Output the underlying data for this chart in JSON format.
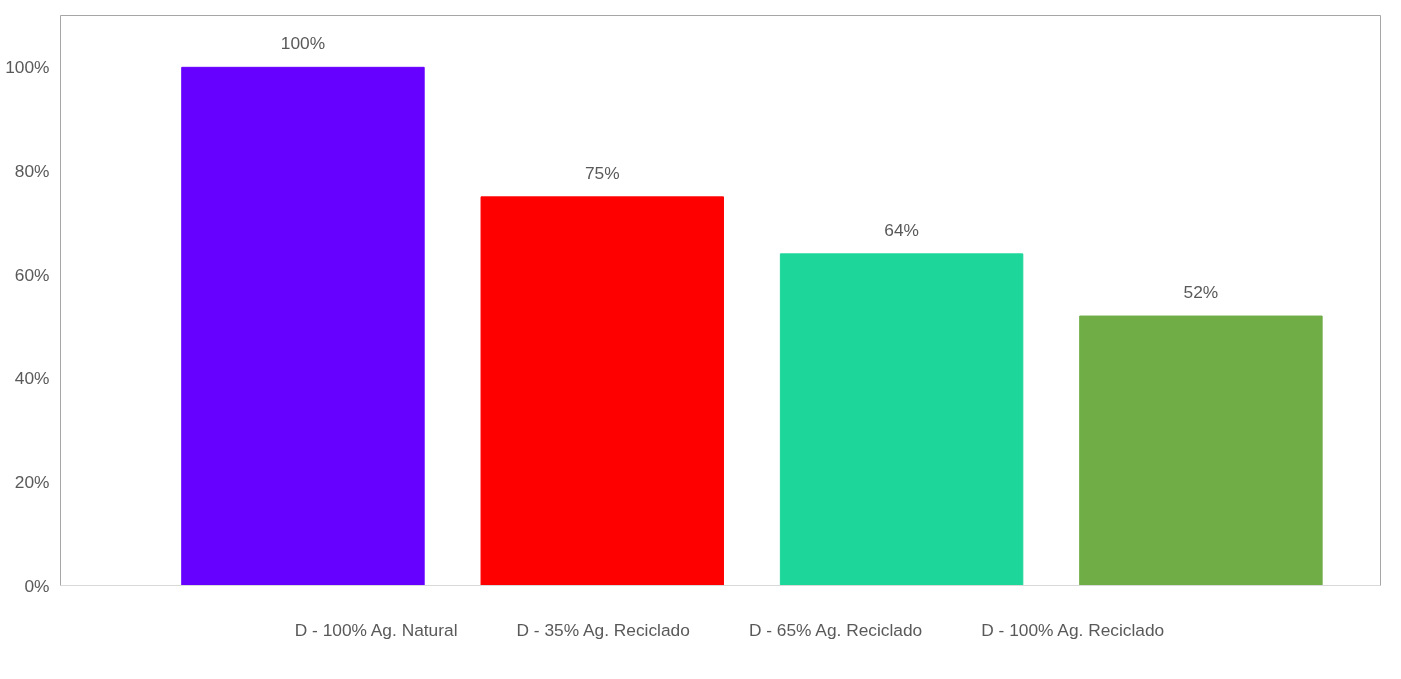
{
  "chart_data": {
    "type": "bar",
    "categories": [
      null
    ],
    "series": [
      {
        "name": "D - 100% Ag. Natural",
        "color": "#6600ff",
        "values": [
          100
        ],
        "value_labels": [
          "100%"
        ]
      },
      {
        "name": "D - 35% Ag. Reciclado",
        "color": "#ff0000",
        "values": [
          75
        ],
        "value_labels": [
          "75%"
        ]
      },
      {
        "name": "D - 65% Ag. Reciclado",
        "color": "#1dd69a",
        "values": [
          64
        ],
        "value_labels": [
          "64%"
        ]
      },
      {
        "name": "D - 100% Ag. Reciclado",
        "color": "#70ad47",
        "values": [
          52
        ],
        "value_labels": [
          "52%"
        ]
      }
    ],
    "ylim": [
      0,
      110
    ],
    "yticks": [
      {
        "value": 0,
        "label": "0%"
      },
      {
        "value": 20,
        "label": "20%"
      },
      {
        "value": 40,
        "label": "40%"
      },
      {
        "value": 60,
        "label": "60%"
      },
      {
        "value": 80,
        "label": "80%"
      },
      {
        "value": 100,
        "label": "100%"
      }
    ],
    "grid": false,
    "legend": "bottom"
  }
}
